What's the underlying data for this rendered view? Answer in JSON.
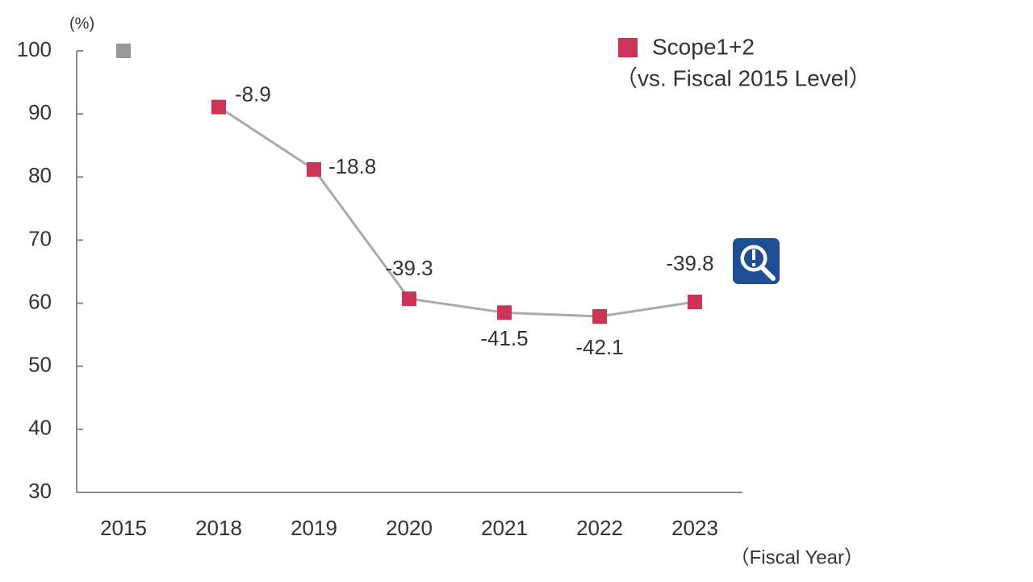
{
  "chart_data": {
    "type": "line",
    "y_unit": "(%)",
    "x_label": "（Fiscal Year）",
    "categories": [
      "2015",
      "2018",
      "2019",
      "2020",
      "2021",
      "2022",
      "2023"
    ],
    "baseline": {
      "value": 100,
      "color": "#999999"
    },
    "series": [
      {
        "name": "Scope1+2",
        "color": "#cc3355",
        "line_color": "#aaaaaa",
        "values": [
          null,
          91.1,
          81.2,
          60.7,
          58.5,
          57.9,
          60.2
        ],
        "changes": [
          null,
          -8.9,
          -18.8,
          -39.3,
          -41.5,
          -42.1,
          -39.8
        ]
      }
    ],
    "legend_note": "（vs. Fiscal 2015 Level）",
    "ylim": [
      30,
      100
    ],
    "yticks": [
      30,
      40,
      50,
      60,
      70,
      80,
      90,
      100
    ]
  }
}
